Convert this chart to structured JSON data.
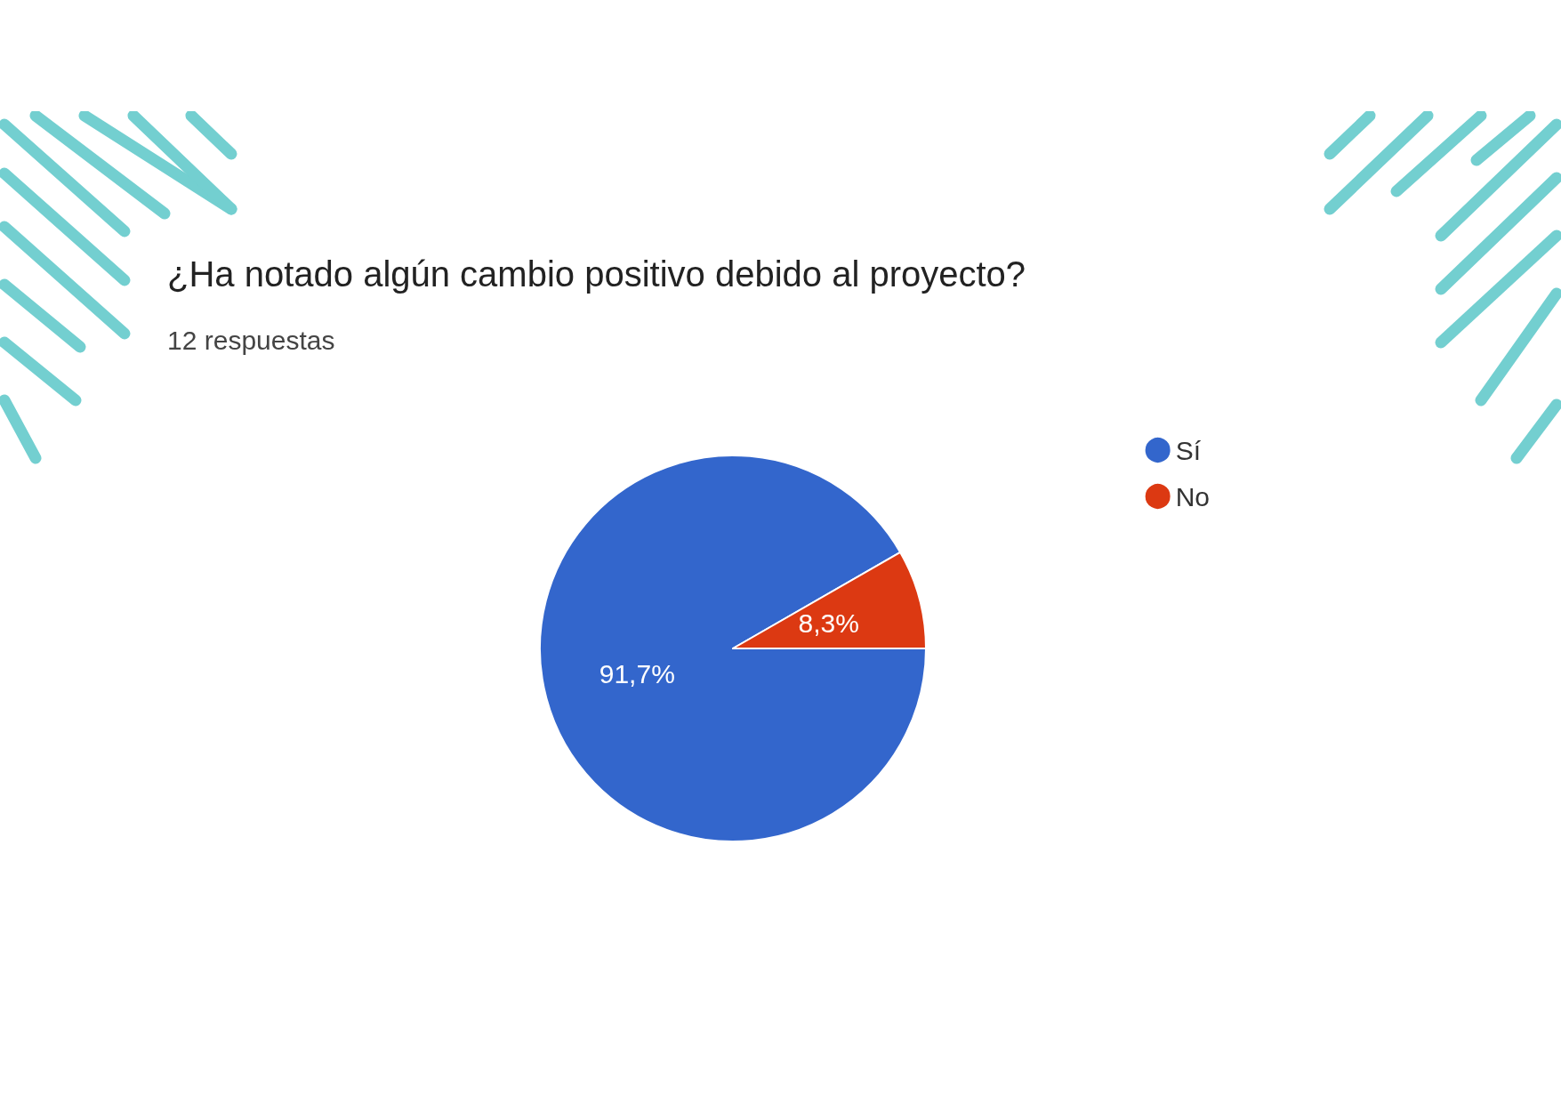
{
  "chart_data": {
    "type": "pie",
    "title": "¿Ha notado algún cambio positivo debido al proyecto?",
    "subtitle": "12 respuestas",
    "categories": [
      "Sí",
      "No"
    ],
    "values": [
      91.7,
      8.3
    ],
    "colors": [
      "#3366cc",
      "#dc3912"
    ],
    "value_labels": [
      "91,7%",
      "8,3%"
    ],
    "legend": "top right"
  }
}
